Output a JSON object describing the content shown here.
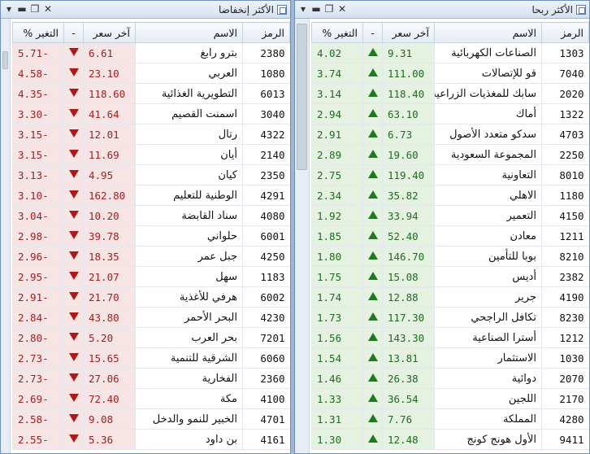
{
  "colors": {
    "loss": "#b01818",
    "gain": "#1d7a1d"
  },
  "losers": {
    "title": "الأكثر إنخفاضا",
    "columns": {
      "symbol": "الرمز",
      "name": "الاسم",
      "price": "آخر سعر",
      "arrow": "-",
      "change": "التغير %"
    },
    "rows": [
      {
        "symbol": "2380",
        "name": "بترو رابغ",
        "price": "6.61",
        "change": "-5.71"
      },
      {
        "symbol": "1080",
        "name": "العربي",
        "price": "23.10",
        "change": "-4.58"
      },
      {
        "symbol": "6013",
        "name": "التطويرية الغذائية",
        "price": "118.60",
        "change": "-4.35"
      },
      {
        "symbol": "3040",
        "name": "اسمنت القصيم",
        "price": "41.64",
        "change": "-3.30"
      },
      {
        "symbol": "4322",
        "name": "رتال",
        "price": "12.01",
        "change": "-3.15"
      },
      {
        "symbol": "2140",
        "name": "أيان",
        "price": "11.69",
        "change": "-3.15"
      },
      {
        "symbol": "2350",
        "name": "كيان",
        "price": "4.95",
        "change": "-3.13"
      },
      {
        "symbol": "4291",
        "name": "الوطنية للتعليم",
        "price": "162.80",
        "change": "-3.10"
      },
      {
        "symbol": "4080",
        "name": "سناد القابضة",
        "price": "10.20",
        "change": "-3.04"
      },
      {
        "symbol": "6001",
        "name": "حلواني",
        "price": "39.78",
        "change": "-2.98"
      },
      {
        "symbol": "4250",
        "name": "جبل عمر",
        "price": "18.35",
        "change": "-2.96"
      },
      {
        "symbol": "1183",
        "name": "سهل",
        "price": "21.07",
        "change": "-2.95"
      },
      {
        "symbol": "6002",
        "name": "هرفي للأغذية",
        "price": "21.70",
        "change": "-2.91"
      },
      {
        "symbol": "4230",
        "name": "البحر الأحمر",
        "price": "43.80",
        "change": "-2.84"
      },
      {
        "symbol": "7201",
        "name": "بحر العرب",
        "price": "5.20",
        "change": "-2.80"
      },
      {
        "symbol": "6060",
        "name": "الشرقية للتنمية",
        "price": "15.65",
        "change": "-2.73"
      },
      {
        "symbol": "2360",
        "name": "الفخارية",
        "price": "27.06",
        "change": "-2.73"
      },
      {
        "symbol": "4100",
        "name": "مكة",
        "price": "72.40",
        "change": "-2.69"
      },
      {
        "symbol": "4701",
        "name": "الخبير للنمو والدخل",
        "price": "9.08",
        "change": "-2.58"
      },
      {
        "symbol": "4161",
        "name": "بن داود",
        "price": "5.36",
        "change": "-2.55"
      }
    ]
  },
  "gainers": {
    "title": "الأكثر ربحا",
    "columns": {
      "symbol": "الرمز",
      "name": "الاسم",
      "price": "آخر سعر",
      "arrow": "-",
      "change": "التغير %"
    },
    "rows": [
      {
        "symbol": "1303",
        "name": "الصناعات الكهربائية",
        "price": "9.31",
        "change": "4.02"
      },
      {
        "symbol": "7040",
        "name": "قو للإتصالات",
        "price": "111.00",
        "change": "3.74"
      },
      {
        "symbol": "2020",
        "name": "سابك للمغذيات الزراعية",
        "price": "118.40",
        "change": "3.14"
      },
      {
        "symbol": "1322",
        "name": "أماك",
        "price": "63.10",
        "change": "2.94"
      },
      {
        "symbol": "4703",
        "name": "سدكو متعدد الأصول",
        "price": "6.73",
        "change": "2.91"
      },
      {
        "symbol": "2250",
        "name": "المجموعة السعودية",
        "price": "19.60",
        "change": "2.89"
      },
      {
        "symbol": "8010",
        "name": "التعاونية",
        "price": "119.40",
        "change": "2.75"
      },
      {
        "symbol": "1180",
        "name": "الاهلي",
        "price": "35.82",
        "change": "2.34"
      },
      {
        "symbol": "4150",
        "name": "التعمير",
        "price": "33.94",
        "change": "1.92"
      },
      {
        "symbol": "1211",
        "name": "معادن",
        "price": "52.40",
        "change": "1.85"
      },
      {
        "symbol": "8210",
        "name": "بوبا للتأمين",
        "price": "146.70",
        "change": "1.80"
      },
      {
        "symbol": "2382",
        "name": "أديس",
        "price": "15.08",
        "change": "1.75"
      },
      {
        "symbol": "4190",
        "name": "جرير",
        "price": "12.88",
        "change": "1.74"
      },
      {
        "symbol": "8230",
        "name": "تكافل الراجحي",
        "price": "117.30",
        "change": "1.73"
      },
      {
        "symbol": "1212",
        "name": "أسترا الصناعية",
        "price": "143.30",
        "change": "1.56"
      },
      {
        "symbol": "1030",
        "name": "الاستثمار",
        "price": "13.81",
        "change": "1.54"
      },
      {
        "symbol": "2070",
        "name": "دوائية",
        "price": "26.38",
        "change": "1.46"
      },
      {
        "symbol": "2170",
        "name": "اللجين",
        "price": "36.54",
        "change": "1.33"
      },
      {
        "symbol": "4280",
        "name": "المملكة",
        "price": "7.76",
        "change": "1.31"
      },
      {
        "symbol": "9411",
        "name": "الأول هونج كونج",
        "price": "12.48",
        "change": "1.30"
      }
    ]
  }
}
